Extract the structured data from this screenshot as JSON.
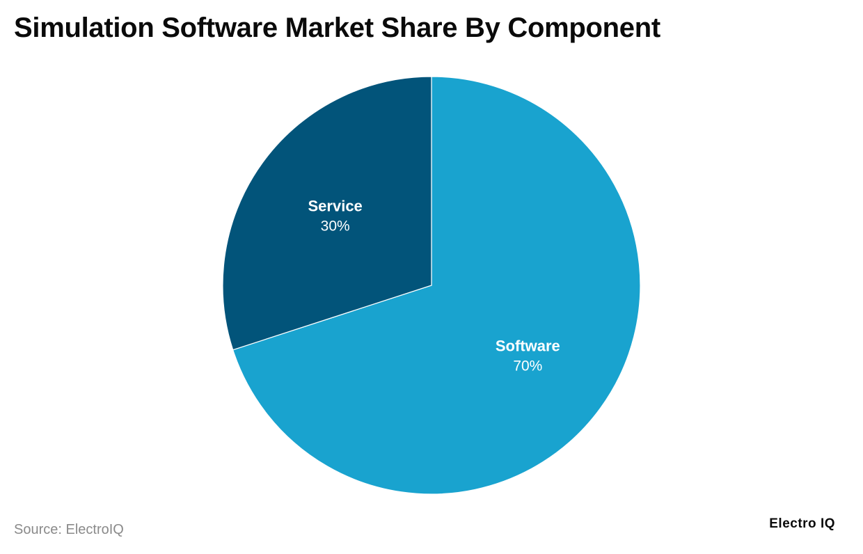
{
  "title": "Simulation Software Market Share By Component",
  "source": "Source: ElectroIQ",
  "brand": "Electro IQ",
  "colors": {
    "service": "#02547a",
    "software": "#19a3cf",
    "separator": "#ffffff"
  },
  "chart_data": {
    "type": "pie",
    "title": "Simulation Software Market Share By Component",
    "slices": [
      {
        "label": "Software",
        "value": 70,
        "value_label": "70%",
        "color": "#19a3cf"
      },
      {
        "label": "Service",
        "value": 30,
        "value_label": "30%",
        "color": "#02547a"
      }
    ],
    "start_angle": "12 o'clock",
    "direction": "clockwise",
    "legend": "none"
  }
}
